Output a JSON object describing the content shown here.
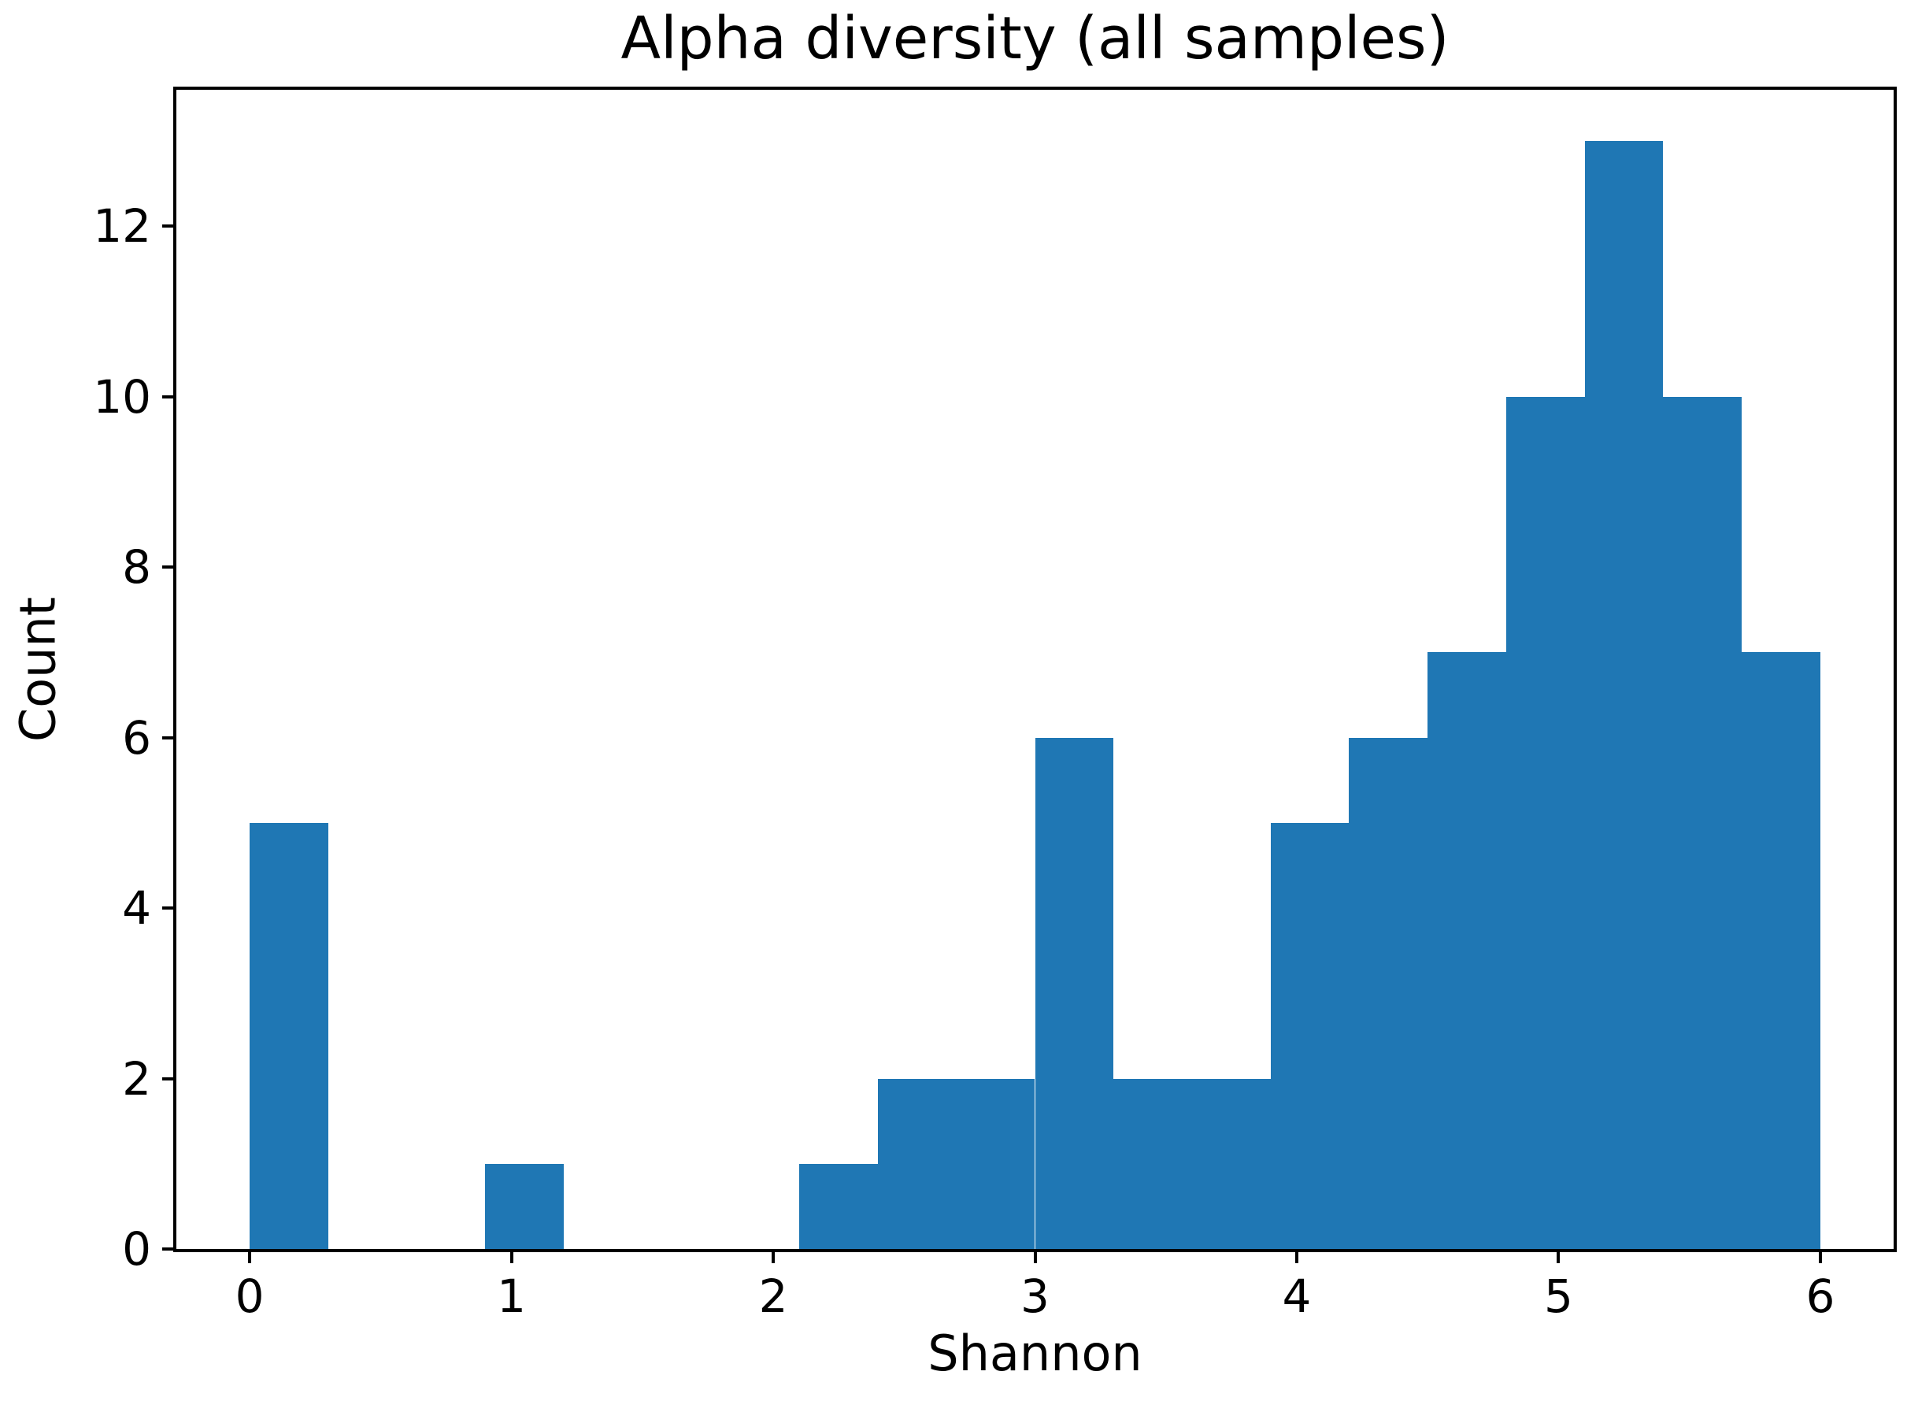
{
  "chart_data": {
    "type": "bar",
    "subtype": "histogram",
    "title": "Alpha diversity (all samples)",
    "xlabel": "Shannon",
    "ylabel": "Count",
    "bin_edges": [
      0,
      0.3,
      0.6,
      0.9,
      1.2,
      1.5,
      1.8,
      2.1,
      2.4,
      2.7,
      3.0,
      3.3,
      3.6,
      3.9,
      4.2,
      4.5,
      4.8,
      5.1,
      5.4,
      5.7,
      6.0
    ],
    "counts": [
      5,
      0,
      0,
      1,
      0,
      0,
      0,
      1,
      2,
      2,
      6,
      2,
      2,
      5,
      6,
      7,
      10,
      13,
      10,
      7
    ],
    "bar_color": "#1f77b4",
    "text_color": "#000000",
    "xlim": [
      -0.28,
      6.28
    ],
    "ylim": [
      0,
      13.6
    ],
    "xticks": [
      0,
      1,
      2,
      3,
      4,
      5,
      6
    ],
    "yticks": [
      0,
      2,
      4,
      6,
      8,
      10,
      12
    ],
    "grid": false,
    "legend": null
  }
}
